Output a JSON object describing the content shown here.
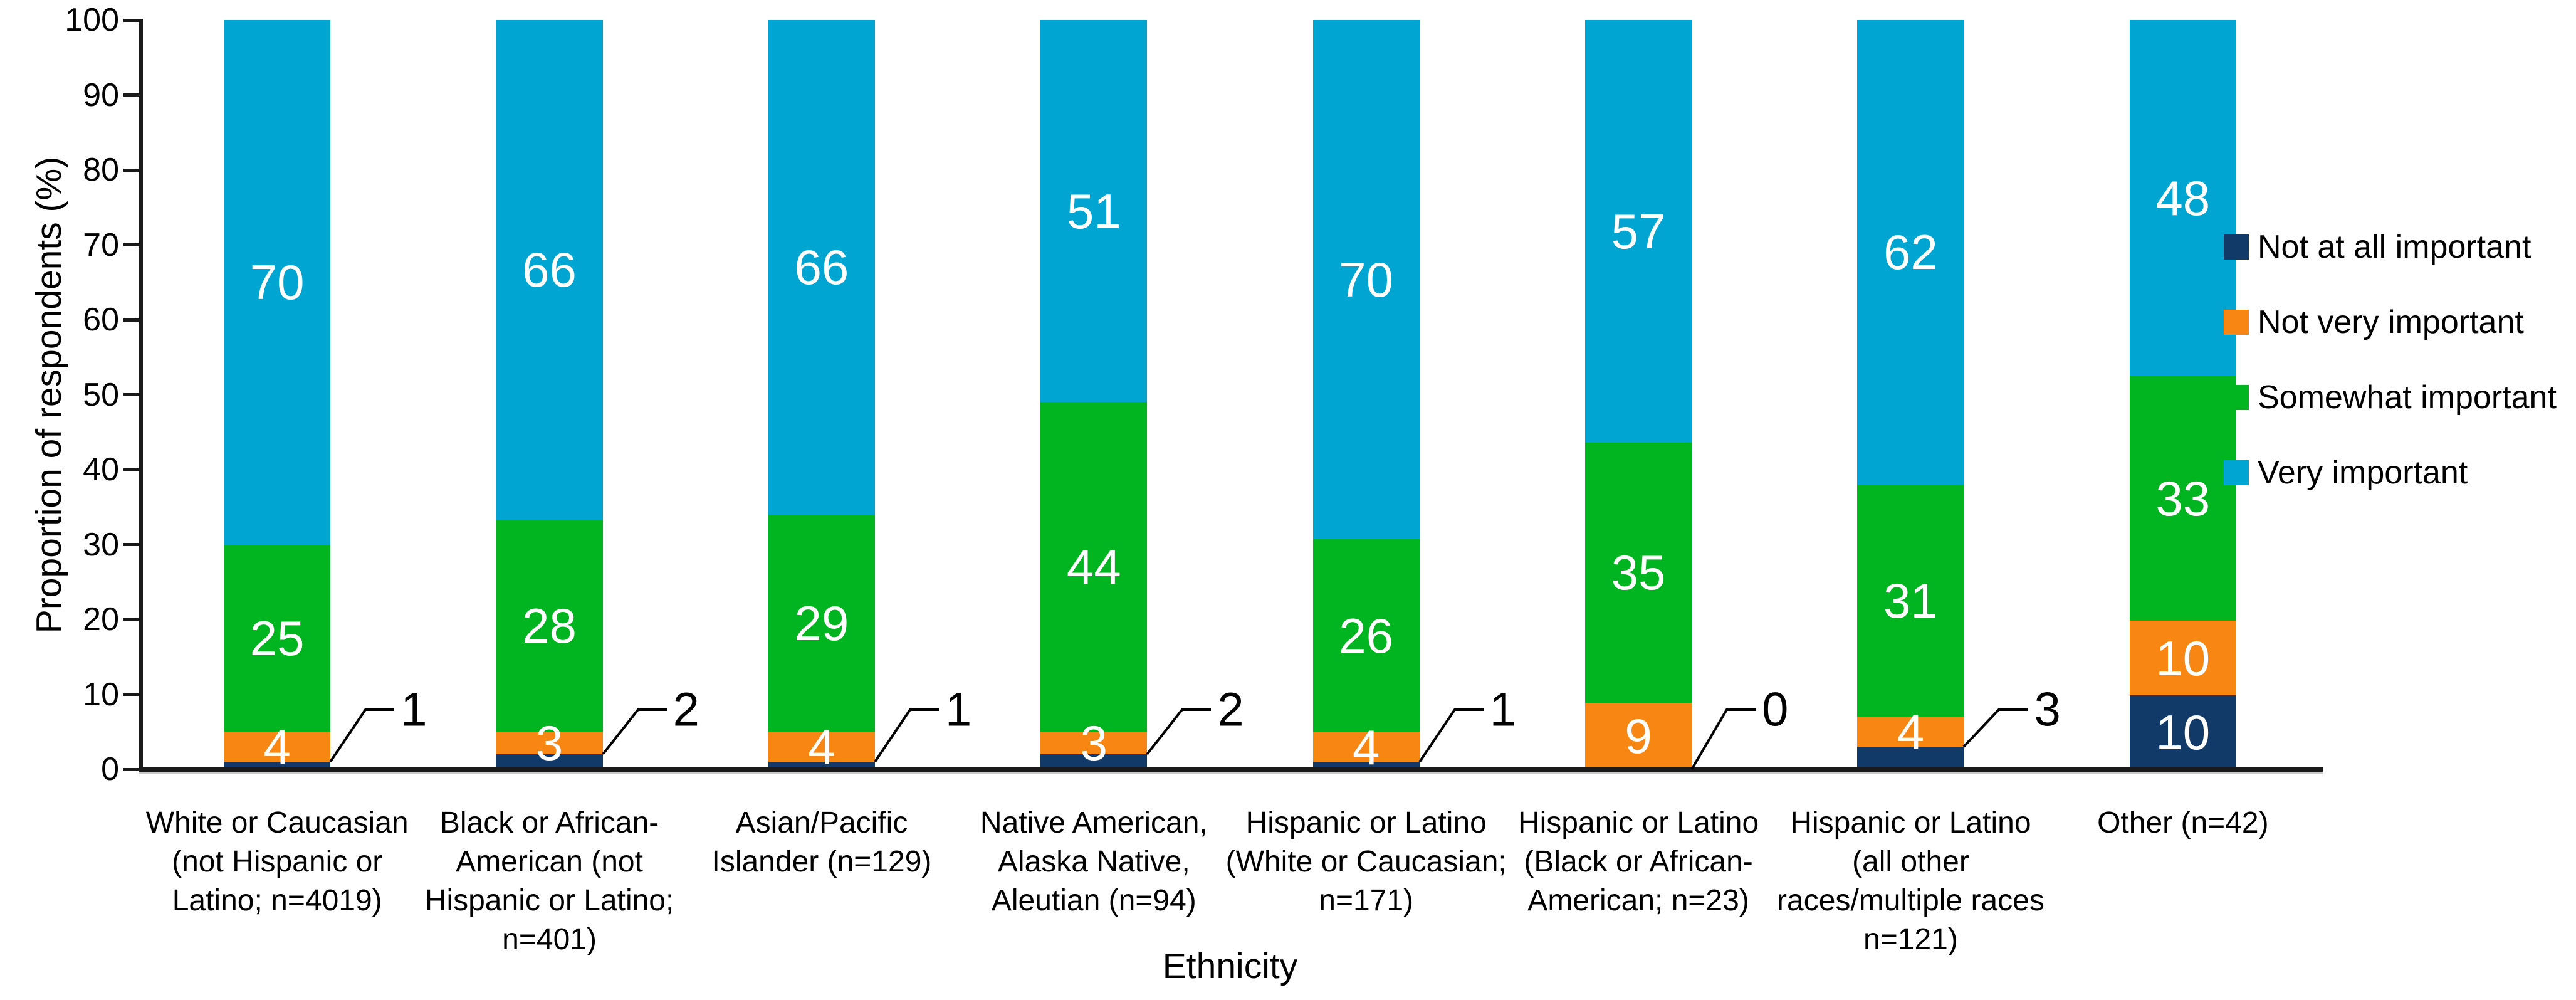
{
  "chart_data": {
    "type": "bar",
    "stacked": true,
    "title": "",
    "xlabel": "Ethnicity",
    "ylabel": "Proportion of respondents (%)",
    "ylim": [
      0,
      100
    ],
    "yticks": [
      0,
      10,
      20,
      30,
      40,
      50,
      60,
      70,
      80,
      90,
      100
    ],
    "grid": false,
    "legend_position": "right",
    "background_color": "#ffffff",
    "axis_color": "#1a1a1a",
    "inside_label_color": "#ffffff",
    "callout_label_color": "#000000",
    "categories": [
      "White or Caucasian\n(not Hispanic or\nLatino; n=4019)",
      "Black or African-\nAmerican (not\nHispanic or Latino;\nn=401)",
      "Asian/Pacific\nIslander (n=129)",
      "Native American,\nAlaska Native,\nAleutian (n=94)",
      "Hispanic or Latino\n(White or Caucasian;\nn=171)",
      "Hispanic or Latino\n(Black or African-\nAmerican; n=23)",
      "Hispanic or Latino\n(all other\nraces/multiple races\nn=121)",
      "Other (n=42)"
    ],
    "series": [
      {
        "name": "Not at all important",
        "color": "#123A68",
        "values": [
          1,
          2,
          1,
          2,
          1,
          0,
          3,
          10
        ]
      },
      {
        "name": "Not very important",
        "color": "#F78712",
        "values": [
          4,
          3,
          4,
          3,
          4,
          9,
          4,
          10
        ]
      },
      {
        "name": "Somewhat important",
        "color": "#00B520",
        "values": [
          25,
          28,
          29,
          44,
          26,
          35,
          31,
          33
        ]
      },
      {
        "name": "Very important",
        "color": "#00A6D1",
        "values": [
          70,
          66,
          66,
          51,
          70,
          57,
          62,
          48
        ]
      }
    ]
  }
}
